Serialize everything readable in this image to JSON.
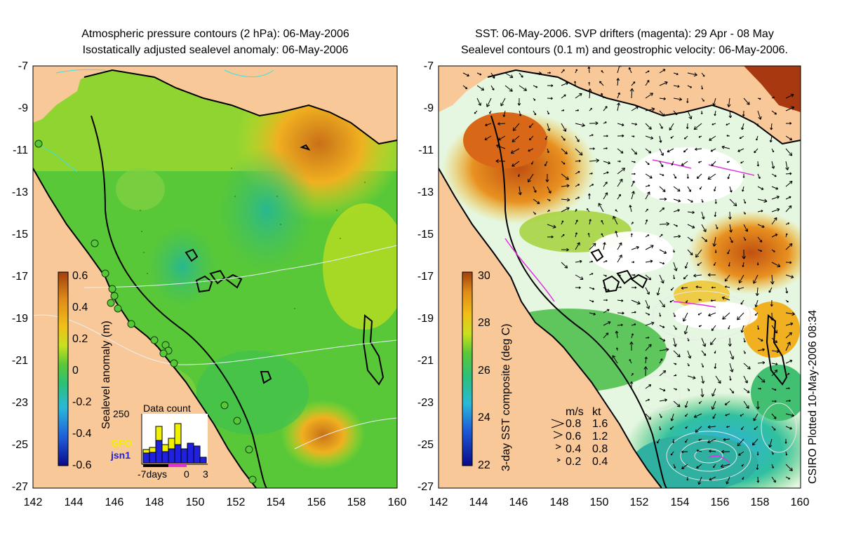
{
  "left_panel": {
    "title_line1": "Atmospheric pressure contours (2 hPa): 06-May-2006",
    "title_line2": "Isostatically adjusted sealevel anomaly: 06-May-2006",
    "colorbar_label": "Sealevel anomaly (m)",
    "colorbar_ticks": [
      "0.6",
      "0.4",
      "0.2",
      "0",
      "-0.2",
      "-0.4",
      "-0.6"
    ],
    "colorbar_colors": [
      "#0a0a8a",
      "#1e5ad8",
      "#2ab8d8",
      "#2cc07a",
      "#7ad83a",
      "#c8e020",
      "#f0c018",
      "#e08a18",
      "#a0400c"
    ],
    "inset": {
      "title": "Data count",
      "ymax_label": "250",
      "series1": "GFO",
      "series2": "jsn1",
      "series1_color": "#f0f000",
      "series2_color": "#2020e0",
      "xlabel_left": "-7days",
      "xlabel_mid": "0",
      "xlabel_right": "3"
    }
  },
  "right_panel": {
    "title_line1": "SST: 06-May-2006. SVP drifters (magenta): 29 Apr - 08 May",
    "title_line2": "Sealevel contours (0.1 m) and geostrophic velocity: 06-May-2006.",
    "colorbar_label": "3-day SST composite (deg C)",
    "colorbar_ticks": [
      "30",
      "28",
      "26",
      "24",
      "22"
    ],
    "legend": {
      "header_ms": "m/s",
      "header_kt": "kt",
      "rows": [
        {
          "ms": "0.8",
          "kt": "1.6"
        },
        {
          "ms": "0.6",
          "kt": "1.2"
        },
        {
          "ms": "0.4",
          "kt": "0.8"
        },
        {
          "ms": "0.2",
          "kt": "0.4"
        }
      ]
    }
  },
  "axes": {
    "y_ticks": [
      "-7",
      "-9",
      "-11",
      "-13",
      "-15",
      "-17",
      "-19",
      "-21",
      "-23",
      "-25",
      "-27"
    ],
    "x_ticks": [
      "142",
      "144",
      "146",
      "148",
      "150",
      "152",
      "154",
      "156",
      "158",
      "160"
    ]
  },
  "credit": "CSIRO Plotted 10-May-2006 08:34",
  "colors": {
    "land": "#f8c898",
    "sla_green": "#58c838",
    "sla_low": "#28b878",
    "sla_high": "#e8a020",
    "sst_warm": "#e08018",
    "sst_hot": "#b04010",
    "sst_mid": "#30b860",
    "sst_cool": "#28a8d0",
    "cloud": "#ffffff"
  }
}
